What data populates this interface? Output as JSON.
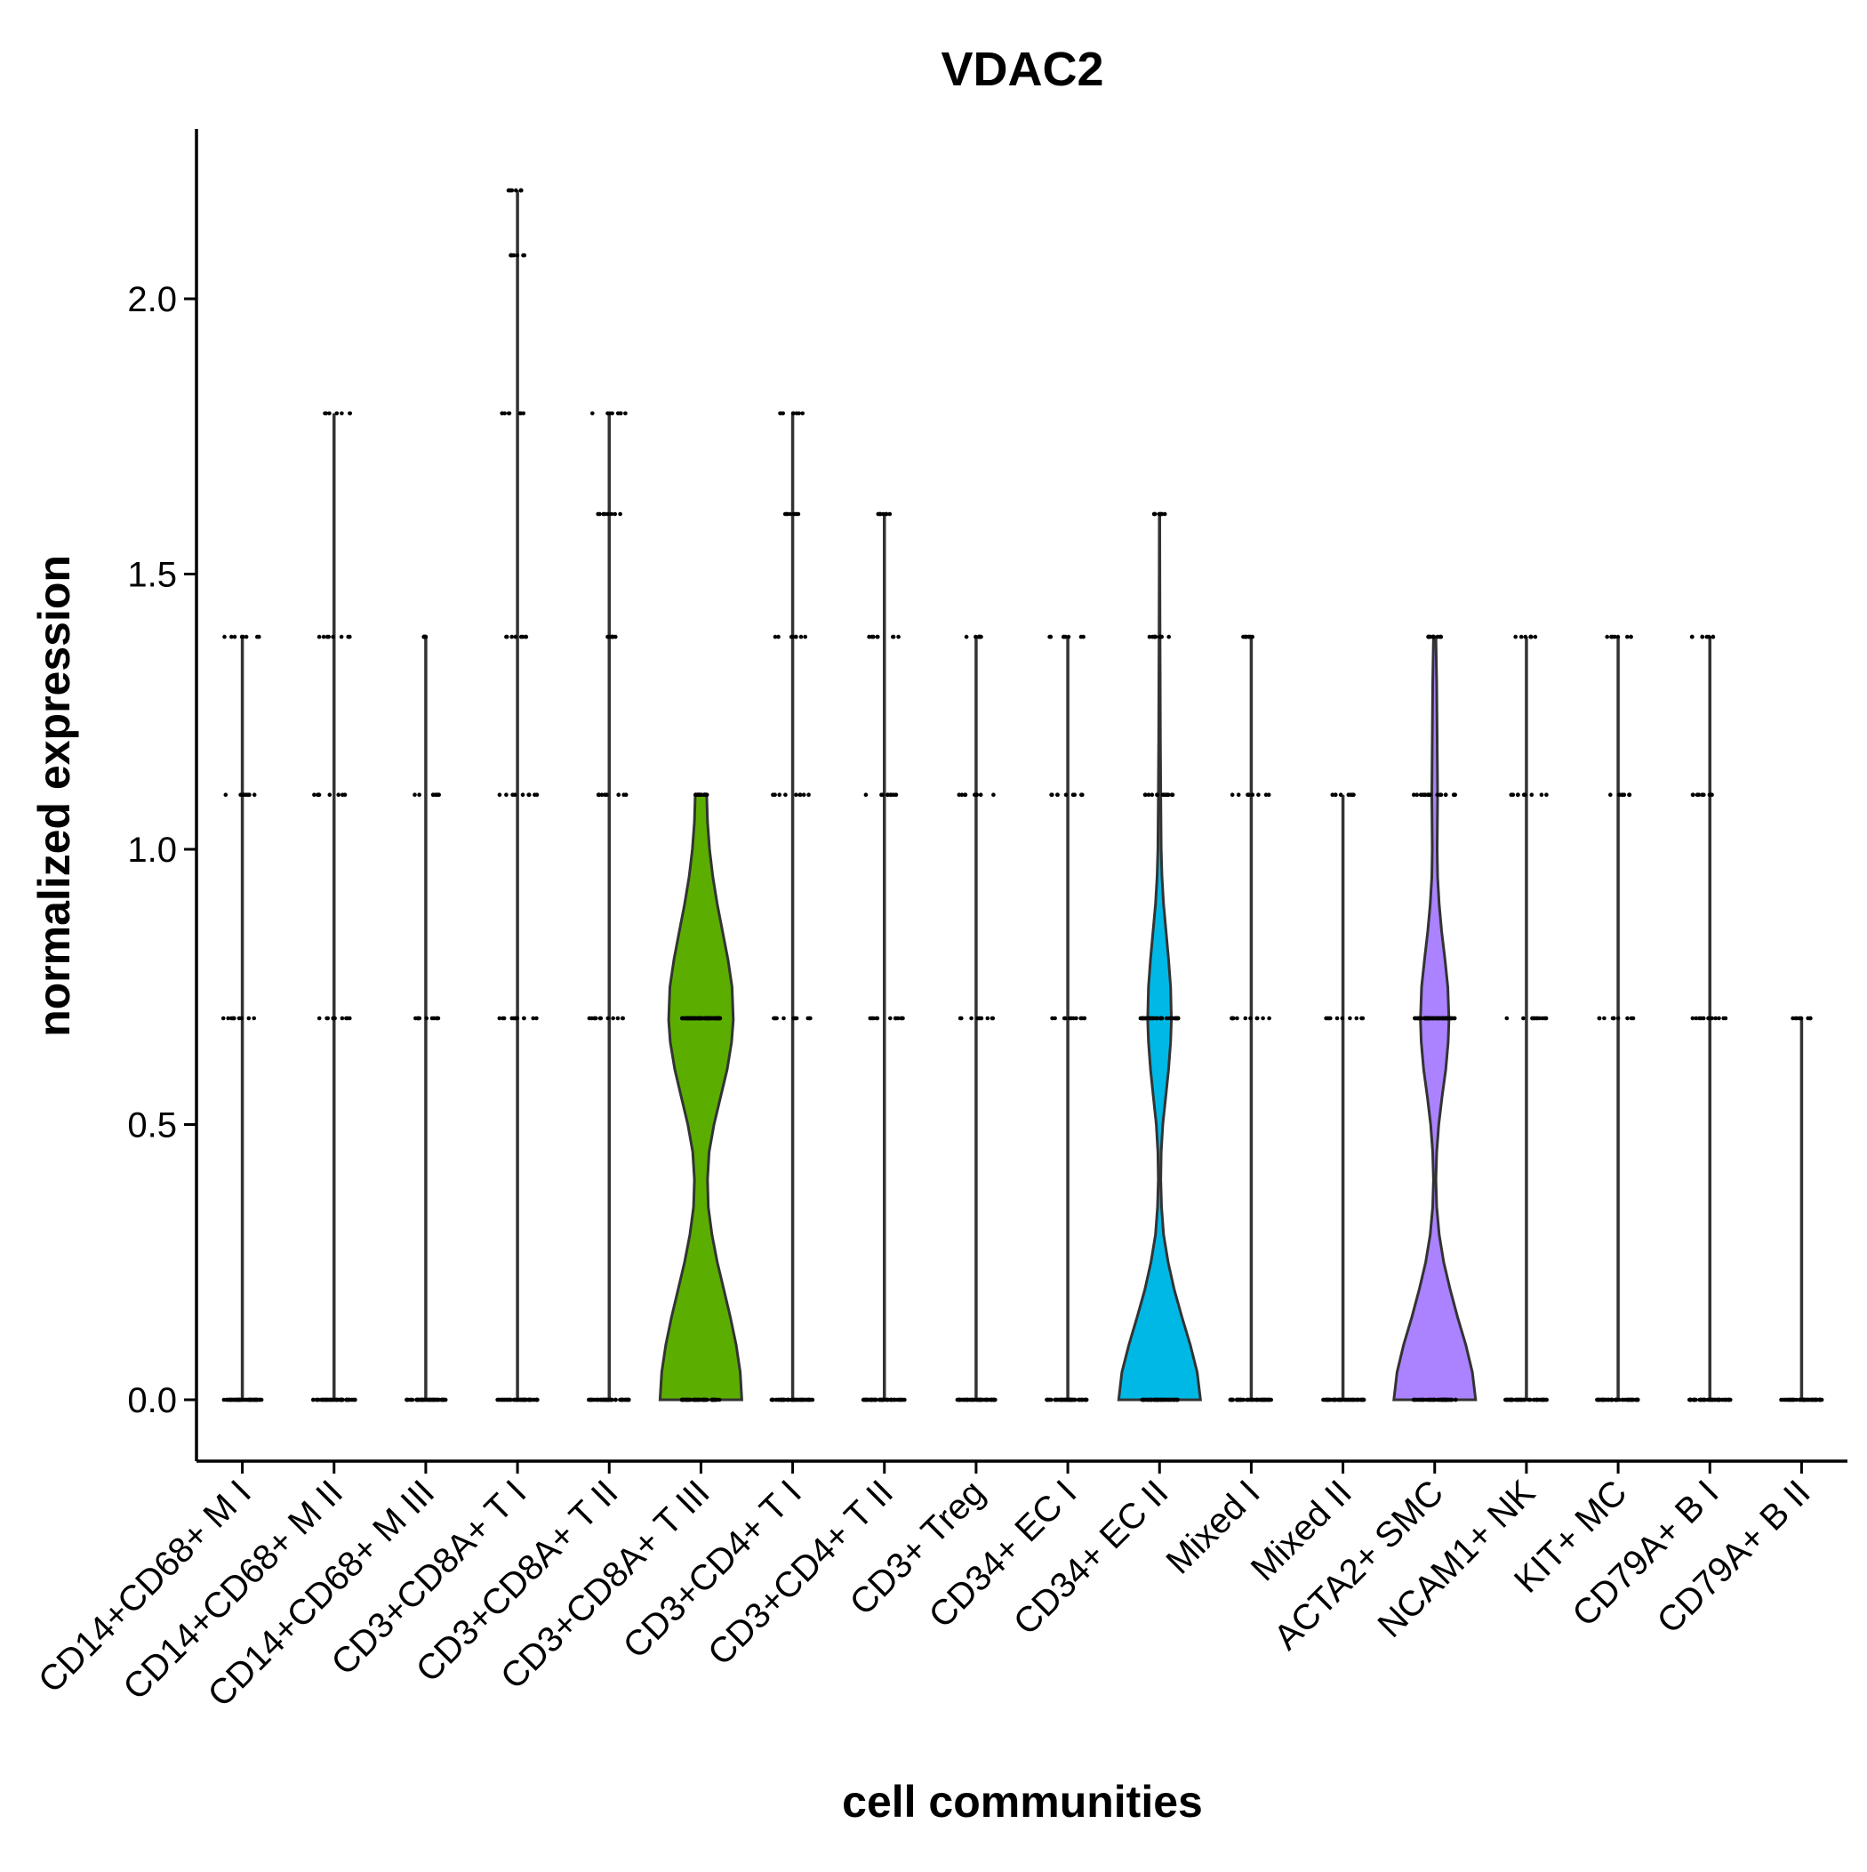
{
  "chart_data": {
    "type": "violin",
    "title": "VDAC2",
    "xlabel": "cell communities",
    "ylabel": "normalized expression",
    "ylim": [
      -0.11,
      2.31
    ],
    "yticks": [
      0.0,
      0.5,
      1.0,
      1.5,
      2.0
    ],
    "ytick_labels": [
      "0.0",
      "0.5",
      "1.0",
      "1.5",
      "2.0"
    ],
    "grid": false,
    "legend": "none",
    "categories": [
      "CD14+CD68+ M I",
      "CD14+CD68+ M II",
      "CD14+CD68+ M III",
      "CD3+CD8A+ T I",
      "CD3+CD8A+ T II",
      "CD3+CD8A+ T III",
      "CD3+CD4+ T I",
      "CD3+CD4+ T II",
      "CD3+ Treg",
      "CD34+ EC I",
      "CD34+ EC II",
      "Mixed I",
      "Mixed II",
      "ACTA2+ SMC",
      "NCAM1+ NK",
      "KIT+ MC",
      "CD79A+ B I",
      "CD79A+ B II"
    ],
    "colors": {
      "CD3+CD8A+ T III": "#5BAE00",
      "CD34+ EC II": "#00B8E5",
      "ACTA2+ SMC": "#AB82FF",
      "outline": "#333333",
      "points": "#000000"
    },
    "series": [
      {
        "category": "CD14+CD68+ M I",
        "max": 1.386,
        "levels": [
          0,
          0.693,
          1.099,
          1.386
        ],
        "width": [
          1.0,
          0.02,
          0.01,
          0.003
        ],
        "spread": [
          0.42,
          0.42,
          0.38,
          0.4
        ]
      },
      {
        "category": "CD14+CD68+ M II",
        "max": 1.792,
        "levels": [
          0,
          0.693,
          1.099,
          1.386,
          1.792
        ],
        "width": [
          1.0,
          0.02,
          0.01,
          0.003,
          0.002
        ],
        "spread": [
          0.46,
          0.44,
          0.44,
          0.4,
          0.36
        ]
      },
      {
        "category": "CD14+CD68+ M III",
        "max": 1.386,
        "levels": [
          0,
          0.693,
          1.099,
          1.386
        ],
        "width": [
          1.0,
          0.02,
          0.01,
          0.002
        ],
        "spread": [
          0.44,
          0.3,
          0.4,
          0.05
        ]
      },
      {
        "category": "CD3+CD8A+ T I",
        "max": 2.197,
        "levels": [
          0,
          0.693,
          1.099,
          1.386,
          1.792,
          2.079,
          2.197
        ],
        "width": [
          1.0,
          0.03,
          0.01,
          0.004,
          0.002,
          0.001,
          0.001
        ],
        "spread": [
          0.44,
          0.42,
          0.44,
          0.26,
          0.4,
          0.18,
          0.2
        ]
      },
      {
        "category": "CD3+CD8A+ T II",
        "max": 1.792,
        "levels": [
          0,
          0.693,
          1.099,
          1.386,
          1.609,
          1.792
        ],
        "width": [
          1.0,
          0.03,
          0.01,
          0.002,
          0.001,
          0.001
        ],
        "spread": [
          0.46,
          0.44,
          0.4,
          0.16,
          0.26,
          0.4
        ]
      },
      {
        "category": "CD3+CD8A+ T III",
        "max": 1.099,
        "levels": [
          0,
          0.693,
          1.099
        ],
        "width": [
          1.0,
          0.78,
          0.14
        ],
        "spread": [
          0.42,
          0.42,
          0.14
        ],
        "violin": [
          [
            0.0,
            1.0
          ],
          [
            0.05,
            0.96
          ],
          [
            0.1,
            0.86
          ],
          [
            0.15,
            0.72
          ],
          [
            0.2,
            0.56
          ],
          [
            0.25,
            0.4
          ],
          [
            0.3,
            0.27
          ],
          [
            0.35,
            0.18
          ],
          [
            0.4,
            0.16
          ],
          [
            0.45,
            0.2
          ],
          [
            0.5,
            0.32
          ],
          [
            0.55,
            0.48
          ],
          [
            0.6,
            0.64
          ],
          [
            0.65,
            0.75
          ],
          [
            0.69,
            0.79
          ],
          [
            0.75,
            0.76
          ],
          [
            0.8,
            0.66
          ],
          [
            0.85,
            0.53
          ],
          [
            0.9,
            0.4
          ],
          [
            0.95,
            0.29
          ],
          [
            1.0,
            0.21
          ],
          [
            1.05,
            0.16
          ],
          [
            1.099,
            0.14
          ]
        ]
      },
      {
        "category": "CD3+CD4+ T I",
        "max": 1.792,
        "levels": [
          0,
          0.693,
          1.099,
          1.386,
          1.609,
          1.792
        ],
        "width": [
          1.0,
          0.03,
          0.01,
          0.003,
          0.001,
          0.001
        ],
        "spread": [
          0.46,
          0.44,
          0.44,
          0.4,
          0.18,
          0.28
        ]
      },
      {
        "category": "CD3+CD4+ T II",
        "max": 1.609,
        "levels": [
          0,
          0.693,
          1.099,
          1.386,
          1.609
        ],
        "width": [
          1.0,
          0.03,
          0.01,
          0.003,
          0.001
        ],
        "spread": [
          0.46,
          0.44,
          0.42,
          0.36,
          0.14
        ]
      },
      {
        "category": "CD3+ Treg",
        "max": 1.386,
        "levels": [
          0,
          0.693,
          1.099,
          1.386
        ],
        "width": [
          1.0,
          0.02,
          0.01,
          0.002
        ],
        "spread": [
          0.42,
          0.4,
          0.4,
          0.24
        ]
      },
      {
        "category": "CD34+ EC I",
        "max": 1.386,
        "levels": [
          0,
          0.693,
          1.099,
          1.386
        ],
        "width": [
          1.0,
          0.03,
          0.01,
          0.003
        ],
        "spread": [
          0.46,
          0.44,
          0.44,
          0.4
        ]
      },
      {
        "category": "CD34+ EC II",
        "max": 1.609,
        "levels": [
          0,
          0.693,
          1.099,
          1.386,
          1.609
        ],
        "width": [
          1.0,
          0.28,
          0.06,
          0.02,
          0.005
        ],
        "spread": [
          0.42,
          0.44,
          0.32,
          0.24,
          0.14
        ],
        "violin": [
          [
            0.0,
            1.0
          ],
          [
            0.05,
            0.92
          ],
          [
            0.1,
            0.75
          ],
          [
            0.15,
            0.55
          ],
          [
            0.2,
            0.36
          ],
          [
            0.25,
            0.21
          ],
          [
            0.3,
            0.1
          ],
          [
            0.35,
            0.05
          ],
          [
            0.4,
            0.03
          ],
          [
            0.45,
            0.04
          ],
          [
            0.5,
            0.08
          ],
          [
            0.55,
            0.15
          ],
          [
            0.6,
            0.22
          ],
          [
            0.65,
            0.27
          ],
          [
            0.69,
            0.29
          ],
          [
            0.75,
            0.27
          ],
          [
            0.8,
            0.22
          ],
          [
            0.85,
            0.16
          ],
          [
            0.9,
            0.1
          ],
          [
            0.95,
            0.06
          ],
          [
            1.0,
            0.04
          ],
          [
            1.099,
            0.03
          ],
          [
            1.2,
            0.02
          ],
          [
            1.386,
            0.012
          ],
          [
            1.5,
            0.008
          ],
          [
            1.609,
            0.005
          ]
        ]
      },
      {
        "category": "Mixed I",
        "max": 1.386,
        "levels": [
          0,
          0.693,
          1.099,
          1.386
        ],
        "width": [
          1.0,
          0.03,
          0.01,
          0.002
        ],
        "spread": [
          0.46,
          0.44,
          0.44,
          0.18
        ]
      },
      {
        "category": "Mixed II",
        "max": 1.099,
        "levels": [
          0,
          0.693,
          1.099
        ],
        "width": [
          1.0,
          0.02,
          0.001
        ],
        "spread": [
          0.46,
          0.44,
          0.26
        ]
      },
      {
        "category": "ACTA2+ SMC",
        "max": 1.386,
        "levels": [
          0,
          0.693,
          1.099,
          1.386
        ],
        "width": [
          1.0,
          0.55,
          0.09,
          0.04
        ],
        "spread": [
          0.46,
          0.44,
          0.46,
          0.18
        ],
        "violin": [
          [
            0.0,
            1.0
          ],
          [
            0.05,
            0.92
          ],
          [
            0.1,
            0.76
          ],
          [
            0.15,
            0.56
          ],
          [
            0.2,
            0.38
          ],
          [
            0.25,
            0.22
          ],
          [
            0.3,
            0.11
          ],
          [
            0.35,
            0.05
          ],
          [
            0.4,
            0.03
          ],
          [
            0.45,
            0.05
          ],
          [
            0.5,
            0.1
          ],
          [
            0.55,
            0.18
          ],
          [
            0.6,
            0.27
          ],
          [
            0.65,
            0.33
          ],
          [
            0.69,
            0.35
          ],
          [
            0.75,
            0.32
          ],
          [
            0.8,
            0.25
          ],
          [
            0.85,
            0.17
          ],
          [
            0.9,
            0.11
          ],
          [
            0.95,
            0.07
          ],
          [
            1.0,
            0.06
          ],
          [
            1.099,
            0.07
          ],
          [
            1.2,
            0.06
          ],
          [
            1.3,
            0.05
          ],
          [
            1.386,
            0.03
          ]
        ]
      },
      {
        "category": "NCAM1+ NK",
        "max": 1.386,
        "levels": [
          0,
          0.693,
          1.099,
          1.386
        ],
        "width": [
          1.0,
          0.03,
          0.01,
          0.002
        ],
        "spread": [
          0.46,
          0.44,
          0.44,
          0.3
        ]
      },
      {
        "category": "KIT+ MC",
        "max": 1.386,
        "levels": [
          0,
          0.693,
          1.099,
          1.386
        ],
        "width": [
          1.0,
          0.02,
          0.01,
          0.002
        ],
        "spread": [
          0.46,
          0.44,
          0.28,
          0.3
        ]
      },
      {
        "category": "CD79A+ B I",
        "max": 1.386,
        "levels": [
          0,
          0.693,
          1.099,
          1.386
        ],
        "width": [
          1.0,
          0.03,
          0.01,
          0.002
        ],
        "spread": [
          0.46,
          0.44,
          0.44,
          0.4
        ]
      },
      {
        "category": "CD79A+ B II",
        "max": 0.693,
        "levels": [
          0,
          0.693
        ],
        "width": [
          1.0,
          0.01
        ],
        "spread": [
          0.46,
          0.24
        ]
      }
    ]
  }
}
